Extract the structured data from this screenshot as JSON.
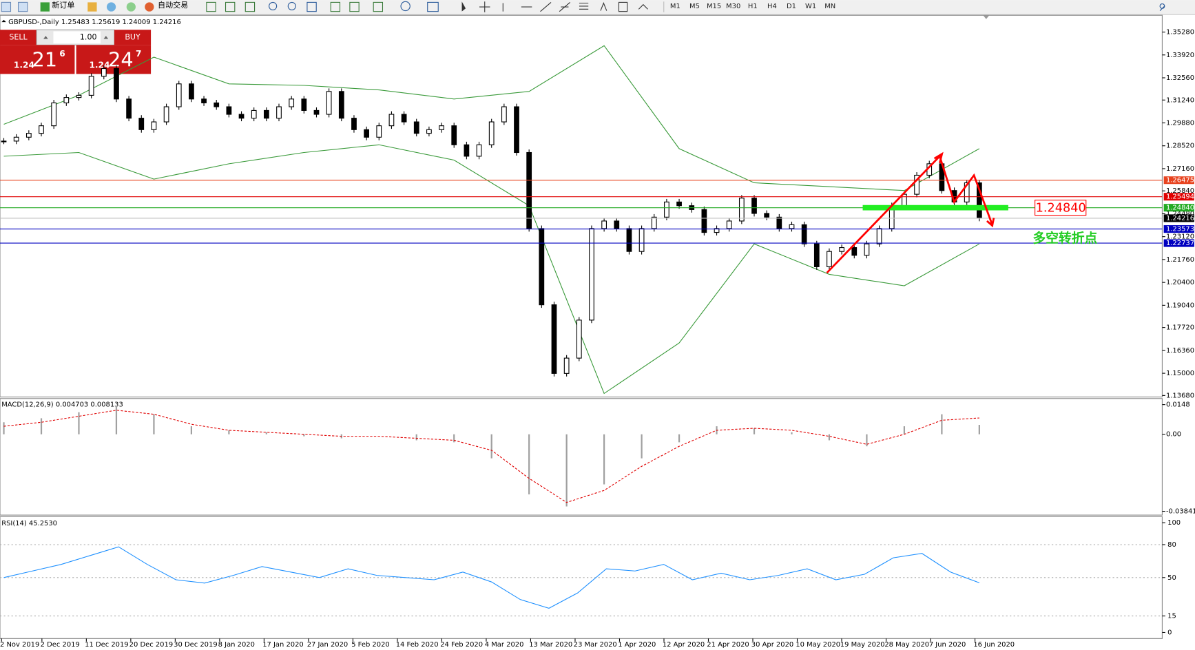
{
  "toolbar": {
    "new_order": "新订单",
    "auto_trading": "自动交易",
    "timeframes": [
      "M1",
      "M5",
      "M15",
      "M30",
      "H1",
      "H4",
      "D1",
      "W1",
      "MN"
    ]
  },
  "trade_panel": {
    "sell": "SELL",
    "lots": "1.00",
    "buy": "BUY",
    "sell_price": {
      "big": "1.24",
      "main": "21",
      "sup": "6"
    },
    "buy_price": {
      "big": "1.24",
      "main": "24",
      "sup": "7"
    }
  },
  "chart_data": [
    {
      "type": "candlestick",
      "title": "GBPUSD-,Daily 1.25483 1.25619 1.24009 1.24216",
      "x_labels": [
        "2 Nov 2019",
        "2 Dec 2019",
        "11 Dec 2019",
        "20 Dec 2019",
        "30 Dec 2019",
        "8 Jan 2020",
        "17 Jan 2020",
        "27 Jan 2020",
        "5 Feb 2020",
        "14 Feb 2020",
        "24 Feb 2020",
        "4 Mar 2020",
        "13 Mar 2020",
        "23 Mar 2020",
        "1 Apr 2020",
        "12 Apr 2020",
        "21 Apr 2020",
        "30 Apr 2020",
        "10 May 2020",
        "19 May 2020",
        "28 May 2020",
        "7 Jun 2020",
        "16 Jun 2020"
      ],
      "values": [
        1.288,
        1.2903,
        1.2926,
        1.2971,
        1.3107,
        1.3139,
        1.3152,
        1.3265,
        1.3311,
        1.313,
        1.3016,
        1.2948,
        1.2994,
        1.3084,
        1.322,
        1.313,
        1.3107,
        1.3084,
        1.3039,
        1.3016,
        1.3062,
        1.3016,
        1.3084,
        1.313,
        1.3062,
        1.3039,
        1.3175,
        1.3016,
        1.2948,
        1.2903,
        1.2971,
        1.3039,
        1.2994,
        1.2926,
        1.2948,
        1.2971,
        1.2858,
        1.279,
        1.2858,
        1.2994,
        1.3084,
        1.2812,
        1.236,
        1.1907,
        1.1499,
        1.159,
        1.1816,
        1.236,
        1.2405,
        1.236,
        1.2224,
        1.236,
        1.2428,
        1.2518,
        1.2496,
        1.2473,
        1.2337,
        1.236,
        1.2405,
        1.2541,
        1.245,
        1.2428,
        1.236,
        1.2383,
        1.2269,
        1.2133,
        1.2224,
        1.2247,
        1.2201,
        1.2269,
        1.236,
        1.2496,
        1.2564,
        1.2677,
        1.2745,
        1.2586,
        1.2518,
        1.2632,
        1.24216
      ],
      "upper_band": [
        1.298,
        1.3152,
        1.3379,
        1.322,
        1.3211,
        1.3184,
        1.313,
        1.3175,
        1.3447,
        1.2835,
        1.2632,
        1.2609,
        1.2586,
        1.2835
      ],
      "lower_band": [
        1.279,
        1.2812,
        1.2654,
        1.2745,
        1.2812,
        1.2858,
        1.2767,
        1.2496,
        1.138,
        1.168,
        1.2269,
        1.2088,
        1.202,
        1.2269
      ],
      "band_color": "#3a9a3a",
      "ylim": [
        1.1368,
        1.3528
      ],
      "yticks": [
        {
          "value": 1.3528,
          "label": "1.35280"
        },
        {
          "value": 1.3392,
          "label": "1.33920"
        },
        {
          "value": 1.3256,
          "label": "1.32560"
        },
        {
          "value": 1.3124,
          "label": "1.31240"
        },
        {
          "value": 1.2988,
          "label": "1.29880"
        },
        {
          "value": 1.2852,
          "label": "1.28520"
        },
        {
          "value": 1.2716,
          "label": "1.27160"
        },
        {
          "value": 1.2584,
          "label": "1.25840"
        },
        {
          "value": 1.2448,
          "label": "1.24480"
        },
        {
          "value": 1.2312,
          "label": "1.23120"
        },
        {
          "value": 1.2176,
          "label": "1.21760"
        },
        {
          "value": 1.204,
          "label": "1.20400"
        },
        {
          "value": 1.1904,
          "label": "1.19040"
        },
        {
          "value": 1.1772,
          "label": "1.17720"
        },
        {
          "value": 1.1636,
          "label": "1.16360"
        },
        {
          "value": 1.15,
          "label": "1.15000"
        },
        {
          "value": 1.1368,
          "label": "1.13680"
        }
      ],
      "price_lines": [
        {
          "value": 1.26475,
          "color": "#e8431f"
        },
        {
          "value": 1.25494,
          "color": "#e00000"
        },
        {
          "value": 1.2484,
          "label": "1.24840",
          "color": "#22aa22"
        },
        {
          "value": 1.24216,
          "color": "#000000"
        },
        {
          "value": 1.23573,
          "color": "#0000c0"
        },
        {
          "value": 1.22737,
          "color": "#0000c0"
        }
      ],
      "annotations": [
        {
          "text": "1.24840",
          "color": "#ff0000"
        },
        {
          "text": "多空转折点",
          "color": "#22cc22"
        }
      ]
    },
    {
      "type": "macd",
      "title": "MACD(12,26,9) 0.004703 0.008133",
      "values": [
        0.006,
        0.008,
        0.011,
        0.014,
        0.01,
        0.004,
        0.002,
        0.001,
        -0.001,
        -0.002,
        0.0,
        -0.003,
        -0.004,
        -0.012,
        -0.03,
        -0.036,
        -0.025,
        -0.012,
        -0.004,
        0.004,
        0.003,
        0.001,
        -0.003,
        -0.006,
        0.004,
        0.01,
        0.004703
      ],
      "signal": [
        0.004,
        0.006,
        0.009,
        0.012,
        0.01,
        0.005,
        0.002,
        0.001,
        0.0,
        -0.001,
        -0.001,
        -0.002,
        -0.003,
        -0.008,
        -0.022,
        -0.034,
        -0.028,
        -0.016,
        -0.006,
        0.002,
        0.003,
        0.002,
        -0.001,
        -0.005,
        0.0,
        0.007,
        0.008133
      ],
      "color": "#a0a0a0",
      "signal_color": "#e00000",
      "ylim": [
        -0.038415,
        0.0148
      ],
      "yticks": [
        0.0148,
        {
          "value": 0,
          "label": "0.00"
        },
        -0.038415
      ]
    },
    {
      "type": "rsi",
      "title": "RSI(14) 45.2530",
      "values": [
        50,
        56,
        62,
        70,
        78,
        62,
        48,
        45,
        52,
        60,
        55,
        50,
        58,
        52,
        50,
        48,
        55,
        46,
        30,
        22,
        36,
        58,
        56,
        62,
        48,
        54,
        48,
        52,
        58,
        48,
        53,
        68,
        72,
        55,
        45.253
      ],
      "color": "#1e90ff",
      "ylim": [
        0,
        100
      ],
      "yticks": [
        100,
        80,
        50,
        15,
        0
      ],
      "grid": true
    }
  ]
}
